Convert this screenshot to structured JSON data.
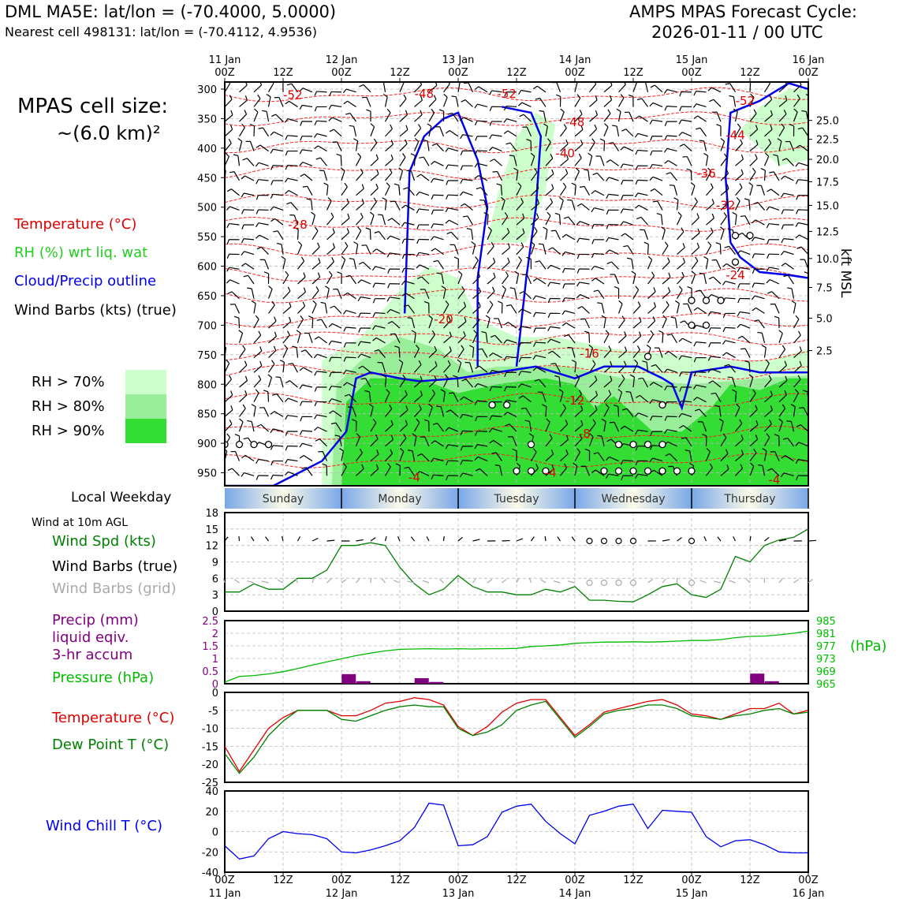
{
  "header": {
    "title": "DML MA5E: lat/lon = (-70.4000, 5.0000)",
    "subtitle": "Nearest cell 498131: lat/lon = (-70.4112, 4.9536)",
    "cycle_line1": "AMPS MPAS Forecast Cycle:",
    "cycle_line2": "2026-01-11 / 00 UTC"
  },
  "left_panel": {
    "cell_size_line1": "MPAS cell size:",
    "cell_size_line2": "~(6.0 km)²",
    "legend_temp": "Temperature (°C)",
    "legend_rh": "RH (%) wrt liq. wat",
    "legend_cloud": "Cloud/Precip outline",
    "legend_wind": "Wind Barbs (kts) (true)",
    "rh70": "RH > 70%",
    "rh80": "RH > 80%",
    "rh90": "RH > 90%",
    "local_weekday": "Local Weekday",
    "wind_10m": "Wind at 10m AGL",
    "wind_spd": "Wind Spd (kts)",
    "wind_barbs_true": "Wind Barbs (true)",
    "wind_barbs_grid": "Wind Barbs (grid)",
    "precip1": "Precip (mm)",
    "precip2": "liquid eqiv.",
    "precip3": "3-hr accum",
    "pressure": "Pressure (hPa)",
    "pressure_unit": "(hPa)",
    "temperature": "Temperature (°C)",
    "dewpoint": "Dew Point T (°C)",
    "windchill": "Wind Chill T (°C)",
    "kft_label": "kft MSL"
  },
  "colors": {
    "rh70": "#ccffcc",
    "rh80": "#99ee99",
    "rh90": "#33dd33",
    "temperature": "#e00000",
    "dewpoint": "#008000",
    "cloud": "#0000ee",
    "windchill": "#0000ee",
    "precip": "#800080",
    "pressure": "#00bb00",
    "grid_barbs": "#aaaaaa"
  },
  "chart_data": [
    {
      "type": "time-height",
      "title": "Time-height section",
      "x_top_labels": [
        {
          "t": 0,
          "l1": "11 Jan",
          "l2": "00Z"
        },
        {
          "t": 12,
          "l1": "",
          "l2": "12Z"
        },
        {
          "t": 24,
          "l1": "12 Jan",
          "l2": "00Z"
        },
        {
          "t": 36,
          "l1": "",
          "l2": "12Z"
        },
        {
          "t": 48,
          "l1": "13 Jan",
          "l2": "00Z"
        },
        {
          "t": 60,
          "l1": "",
          "l2": "12Z"
        },
        {
          "t": 72,
          "l1": "14 Jan",
          "l2": "00Z"
        },
        {
          "t": 84,
          "l1": "",
          "l2": "12Z"
        },
        {
          "t": 96,
          "l1": "15 Jan",
          "l2": "00Z"
        },
        {
          "t": 108,
          "l1": "",
          "l2": "12Z"
        },
        {
          "t": 120,
          "l1": "16 Jan",
          "l2": "00Z"
        }
      ],
      "pressure_ticks": [
        300,
        350,
        400,
        450,
        500,
        550,
        600,
        650,
        700,
        750,
        800,
        850,
        900,
        950
      ],
      "pressure_range": [
        288,
        972
      ],
      "kft_ticks": [
        {
          "p": 353,
          "l": "25.0"
        },
        {
          "p": 385,
          "l": "22.5"
        },
        {
          "p": 419,
          "l": "20.0"
        },
        {
          "p": 457,
          "l": "17.5"
        },
        {
          "p": 497,
          "l": "15.0"
        },
        {
          "p": 541,
          "l": "12.5"
        },
        {
          "p": 587,
          "l": "10.0"
        },
        {
          "p": 636,
          "l": "7.5"
        },
        {
          "p": 688,
          "l": "5.0"
        },
        {
          "p": 743,
          "l": "2.5"
        }
      ],
      "temperature_labels": [
        {
          "t": 14,
          "p": 310,
          "l": "-52"
        },
        {
          "t": 41,
          "p": 308,
          "l": "-48"
        },
        {
          "t": 58,
          "p": 308,
          "l": "-52"
        },
        {
          "t": 107,
          "p": 320,
          "l": "-52"
        },
        {
          "t": 72,
          "p": 356,
          "l": "-48"
        },
        {
          "t": 105,
          "p": 378,
          "l": "-44"
        },
        {
          "t": 70,
          "p": 409,
          "l": "-40"
        },
        {
          "t": 99,
          "p": 443,
          "l": "-36"
        },
        {
          "t": 103,
          "p": 497,
          "l": "-32"
        },
        {
          "t": 15,
          "p": 530,
          "l": "-28"
        },
        {
          "t": 105,
          "p": 615,
          "l": "-24"
        },
        {
          "t": 45,
          "p": 690,
          "l": "-20"
        },
        {
          "t": 75,
          "p": 748,
          "l": "-16"
        },
        {
          "t": 72,
          "p": 828,
          "l": "-12"
        },
        {
          "t": 74,
          "p": 884,
          "l": "-8"
        },
        {
          "t": 39,
          "p": 958,
          "l": "-4"
        },
        {
          "t": 67,
          "p": 950,
          "l": "-4"
        },
        {
          "t": 113,
          "p": 962,
          "l": "-4"
        }
      ],
      "precip_circles": [
        {
          "t": 0,
          "p": 902
        },
        {
          "t": 3,
          "p": 902
        },
        {
          "t": 6,
          "p": 902
        },
        {
          "t": 9,
          "p": 902
        },
        {
          "t": 55,
          "p": 835
        },
        {
          "t": 58,
          "p": 835
        },
        {
          "t": 63,
          "p": 902
        },
        {
          "t": 60,
          "p": 947
        },
        {
          "t": 63,
          "p": 947
        },
        {
          "t": 66,
          "p": 947
        },
        {
          "t": 78,
          "p": 947
        },
        {
          "t": 81,
          "p": 947
        },
        {
          "t": 84,
          "p": 947
        },
        {
          "t": 87,
          "p": 947
        },
        {
          "t": 90,
          "p": 947
        },
        {
          "t": 93,
          "p": 947
        },
        {
          "t": 96,
          "p": 947
        },
        {
          "t": 81,
          "p": 902
        },
        {
          "t": 84,
          "p": 902
        },
        {
          "t": 87,
          "p": 902
        },
        {
          "t": 90,
          "p": 902
        },
        {
          "t": 87,
          "p": 753
        },
        {
          "t": 90,
          "p": 835
        },
        {
          "t": 96,
          "p": 658
        },
        {
          "t": 99,
          "p": 658
        },
        {
          "t": 102,
          "p": 658
        },
        {
          "t": 96,
          "p": 700
        },
        {
          "t": 99,
          "p": 700
        },
        {
          "t": 105,
          "p": 548
        },
        {
          "t": 108,
          "p": 548
        },
        {
          "t": 105,
          "p": 593
        }
      ],
      "weekday_labels": [
        {
          "t": 12,
          "l": "Sunday"
        },
        {
          "t": 36,
          "l": "Monday"
        },
        {
          "t": 60,
          "l": "Tuesday"
        },
        {
          "t": 84,
          "l": "Wednesday"
        },
        {
          "t": 108,
          "l": "Thursday"
        }
      ]
    },
    {
      "type": "line",
      "title": "Wind Spd (kts)",
      "x": [
        0,
        3,
        6,
        9,
        12,
        15,
        18,
        21,
        24,
        27,
        30,
        33,
        36,
        39,
        42,
        45,
        48,
        51,
        54,
        57,
        60,
        63,
        66,
        69,
        72,
        75,
        78,
        81,
        84,
        87,
        90,
        93,
        96,
        99,
        102,
        105,
        108,
        111,
        114,
        117,
        120
      ],
      "values": [
        3.5,
        3.5,
        5,
        4,
        4,
        6,
        6,
        7.5,
        12,
        12,
        12.5,
        12,
        8,
        5,
        3,
        4,
        6.5,
        4.5,
        3.5,
        3.5,
        3,
        3,
        4,
        3.5,
        4.5,
        2,
        2,
        1.8,
        1.7,
        3,
        4.5,
        5,
        3,
        2.5,
        4,
        10,
        9,
        12,
        13,
        13.5,
        15
      ],
      "ylim": [
        0,
        18
      ],
      "yticks": [
        0,
        3,
        6,
        9,
        12,
        15,
        18
      ],
      "barb_circles_true": [
        75,
        78,
        81,
        84,
        96
      ],
      "barb_circles_grid": [
        75,
        78,
        81,
        84,
        96
      ]
    },
    {
      "type": "bar+line",
      "title": "Precip (mm) / Pressure (hPa)",
      "precip_x": [
        25.5,
        28.5,
        40.5,
        43.5,
        109.5,
        112.5
      ],
      "precip_values": [
        0.38,
        0.1,
        0.22,
        0.07,
        0.4,
        0.1
      ],
      "precip_ylim": [
        0,
        2.5
      ],
      "precip_yticks": [
        0,
        0.5,
        1.0,
        1.5,
        2.0,
        2.5
      ],
      "pressure_x": [
        0,
        3,
        6,
        9,
        12,
        15,
        18,
        21,
        24,
        27,
        30,
        33,
        36,
        39,
        42,
        45,
        48,
        51,
        54,
        57,
        60,
        63,
        66,
        69,
        72,
        75,
        78,
        81,
        84,
        87,
        90,
        93,
        96,
        99,
        102,
        105,
        108,
        111,
        114,
        117,
        120
      ],
      "pressure_values": [
        965.5,
        967.3,
        967.6,
        968.1,
        968.8,
        969.8,
        970.9,
        971.9,
        972.9,
        973.9,
        974.7,
        975.4,
        975.9,
        976.0,
        976.1,
        976.0,
        976.1,
        976.0,
        976.1,
        976.1,
        976.2,
        976.8,
        977.0,
        977.3,
        977.8,
        978.0,
        978.2,
        978.2,
        978.3,
        978.2,
        978.3,
        978.5,
        978.7,
        978.7,
        979.0,
        979.6,
        980.0,
        980.1,
        980.5,
        981.0,
        981.7
      ],
      "pressure_ylim": [
        965,
        985
      ],
      "pressure_yticks": [
        965,
        969,
        973,
        977,
        981,
        985
      ]
    },
    {
      "type": "line",
      "title": "Temperature (°C) / Dew Point T (°C)",
      "x": [
        0,
        3,
        6,
        9,
        12,
        15,
        18,
        21,
        24,
        27,
        30,
        33,
        36,
        39,
        42,
        45,
        48,
        51,
        54,
        57,
        60,
        63,
        66,
        69,
        72,
        75,
        78,
        81,
        84,
        87,
        90,
        93,
        96,
        99,
        102,
        105,
        108,
        111,
        114,
        117,
        120
      ],
      "series": [
        {
          "name": "Temperature",
          "values": [
            -15,
            -22,
            -16,
            -10,
            -7,
            -5,
            -5,
            -5,
            -6.5,
            -6.5,
            -5,
            -3,
            -2.5,
            -1.5,
            -2,
            -3.5,
            -9.5,
            -12,
            -9.5,
            -5.5,
            -3,
            -2,
            -2,
            -7,
            -12,
            -9,
            -5.5,
            -4.5,
            -3.5,
            -2.5,
            -2,
            -3.5,
            -6,
            -6.5,
            -7.5,
            -6,
            -4.5,
            -4.5,
            -3,
            -6,
            -5
          ]
        },
        {
          "name": "Dew Point",
          "values": [
            -17,
            -22.5,
            -18,
            -12,
            -8,
            -5,
            -5,
            -5,
            -7.5,
            -8,
            -6.5,
            -5,
            -4,
            -3.5,
            -4,
            -4,
            -10,
            -12,
            -11,
            -9,
            -5,
            -3.5,
            -2.5,
            -7.5,
            -12.5,
            -9.5,
            -6,
            -5,
            -4.5,
            -3.5,
            -3.5,
            -4.5,
            -6.5,
            -7,
            -7.5,
            -6.5,
            -6,
            -5,
            -4.5,
            -6,
            -5.5
          ]
        }
      ],
      "ylim": [
        -25,
        0
      ],
      "yticks": [
        0,
        -5,
        -10,
        -15,
        -20,
        -25
      ]
    },
    {
      "type": "line",
      "title": "Wind Chill T (°C)",
      "x": [
        0,
        3,
        6,
        9,
        12,
        15,
        18,
        21,
        24,
        27,
        30,
        33,
        36,
        39,
        42,
        45,
        48,
        51,
        54,
        57,
        60,
        63,
        66,
        69,
        72,
        75,
        78,
        81,
        84,
        87,
        90,
        93,
        96,
        99,
        102,
        105,
        108,
        111,
        114,
        117,
        120
      ],
      "values": [
        -14,
        -27,
        -24,
        -7,
        0,
        -2,
        -3,
        -7,
        -20,
        -21,
        -18,
        -14,
        -9,
        4,
        28,
        26,
        -14,
        -13,
        -5,
        19,
        25,
        27,
        10,
        -2,
        -12,
        16,
        20,
        25,
        27,
        3,
        21,
        20,
        19,
        -5,
        -15,
        -9,
        -8,
        -13,
        -20,
        -21,
        -21
      ],
      "ylim": [
        -40,
        40
      ],
      "yticks": [
        40,
        20,
        0,
        -20,
        -40
      ]
    }
  ],
  "bottom_axis": [
    {
      "t": 0,
      "l1": "00Z",
      "l2": "11 Jan"
    },
    {
      "t": 12,
      "l1": "12Z",
      "l2": ""
    },
    {
      "t": 24,
      "l1": "00Z",
      "l2": "12 Jan"
    },
    {
      "t": 36,
      "l1": "12Z",
      "l2": ""
    },
    {
      "t": 48,
      "l1": "00Z",
      "l2": "13 Jan"
    },
    {
      "t": 60,
      "l1": "12Z",
      "l2": ""
    },
    {
      "t": 72,
      "l1": "00Z",
      "l2": "14 Jan"
    },
    {
      "t": 84,
      "l1": "12Z",
      "l2": ""
    },
    {
      "t": 96,
      "l1": "00Z",
      "l2": "15 Jan"
    },
    {
      "t": 108,
      "l1": "12Z",
      "l2": ""
    },
    {
      "t": 120,
      "l1": "00Z",
      "l2": "16 Jan"
    }
  ]
}
